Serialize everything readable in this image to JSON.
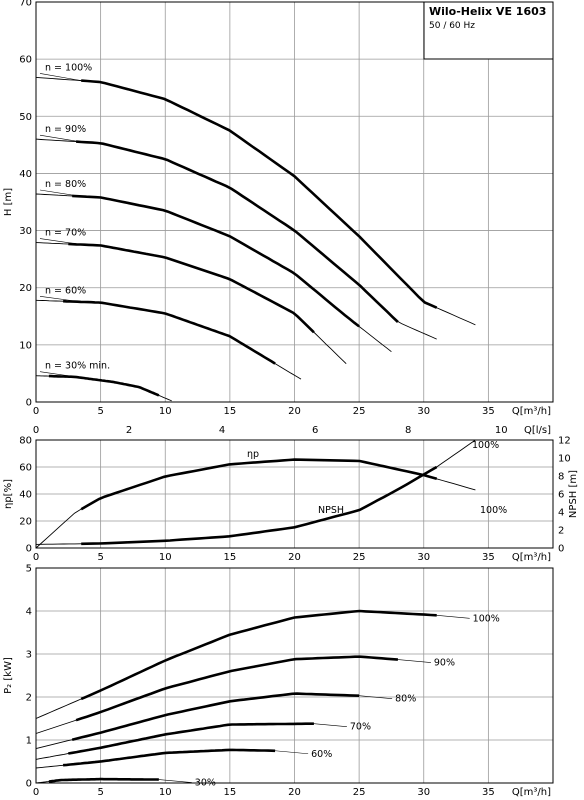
{
  "header": {
    "title": "Wilo-Helix VE 1603",
    "subtitle": "50 / 60 Hz"
  },
  "chart_data": [
    {
      "type": "line",
      "id": "head",
      "xlabel": "Q[m³/h]",
      "ylabel": "H [m]",
      "xlim": [
        0,
        40
      ],
      "ylim": [
        0,
        70
      ],
      "x_ticks": [
        0,
        5,
        10,
        15,
        20,
        25,
        30,
        35
      ],
      "y_ticks": [
        0,
        10,
        20,
        30,
        40,
        50,
        60,
        70
      ],
      "secondary_x": {
        "label": "Q[l/s]",
        "ticks": [
          0,
          2,
          4,
          6,
          8,
          10
        ]
      },
      "grid": true,
      "series": [
        {
          "name": "n = 100%",
          "x": [
            0,
            5,
            10,
            15,
            20,
            25,
            30,
            34
          ],
          "y": [
            56.8,
            56.0,
            53.0,
            47.5,
            39.5,
            29.0,
            17.5,
            13.5
          ],
          "bold": [
            3.5,
            31
          ]
        },
        {
          "name": "n = 90%",
          "x": [
            0,
            5,
            10,
            15,
            20,
            25,
            28,
            31
          ],
          "y": [
            46.0,
            45.3,
            42.5,
            37.5,
            30.0,
            20.5,
            14.0,
            11.0
          ],
          "bold": [
            3.1,
            28
          ]
        },
        {
          "name": "n = 80%",
          "x": [
            0,
            5,
            10,
            15,
            20,
            24,
            27.5
          ],
          "y": [
            36.4,
            35.8,
            33.5,
            29.0,
            22.5,
            15.0,
            8.8
          ],
          "bold": [
            2.8,
            25
          ]
        },
        {
          "name": "n = 70%",
          "x": [
            0,
            5,
            10,
            15,
            20,
            24
          ],
          "y": [
            27.9,
            27.4,
            25.3,
            21.5,
            15.5,
            6.7
          ],
          "bold": [
            2.5,
            21.5
          ]
        },
        {
          "name": "n = 60%",
          "x": [
            0,
            5,
            10,
            15,
            20.5
          ],
          "y": [
            17.8,
            17.4,
            15.5,
            11.5,
            4.0
          ],
          "bold": [
            2.1,
            18.5
          ]
        },
        {
          "name": "n = 30% min.",
          "x": [
            0,
            3,
            6,
            8,
            10.5
          ],
          "y": [
            4.6,
            4.4,
            3.5,
            2.6,
            0.2
          ],
          "bold": [
            1,
            9.5
          ]
        }
      ]
    },
    {
      "type": "line",
      "id": "efficiency-npsh",
      "xlabel": "Q[m³/h]",
      "ylabel": "ηp[%]",
      "y2label": "NPSH [m]",
      "xlim": [
        0,
        40
      ],
      "ylim": [
        0,
        80
      ],
      "y2lim": [
        0,
        12
      ],
      "x_ticks": [
        0,
        5,
        10,
        15,
        20,
        25,
        30,
        35
      ],
      "y_ticks": [
        0,
        20,
        40,
        60,
        80
      ],
      "y2_ticks": [
        0,
        2,
        4,
        6,
        8,
        10,
        12
      ],
      "grid": true,
      "series": [
        {
          "name": "ηp",
          "end_label": "100%",
          "axis": "left",
          "x": [
            0,
            3,
            5,
            10,
            15,
            20,
            25,
            30,
            34
          ],
          "y": [
            0,
            26,
            37,
            53,
            62,
            65.5,
            64.5,
            54,
            43
          ],
          "bold": [
            3.5,
            31
          ]
        },
        {
          "name": "NPSH",
          "end_label": "100%",
          "axis": "right",
          "x": [
            0,
            5,
            10,
            15,
            20,
            25,
            28,
            31,
            34
          ],
          "y": [
            0.4,
            0.5,
            0.8,
            1.3,
            2.3,
            4.2,
            6.5,
            9.0,
            12.0
          ],
          "bold": [
            3.5,
            31
          ]
        }
      ]
    },
    {
      "type": "line",
      "id": "power",
      "xlabel": "Q[m³/h]",
      "ylabel": "P₂ [kW]",
      "xlim": [
        0,
        40
      ],
      "ylim": [
        0,
        5
      ],
      "x_ticks": [
        0,
        5,
        10,
        15,
        20,
        25,
        30,
        35
      ],
      "y_ticks": [
        0,
        1,
        2,
        3,
        4,
        5
      ],
      "grid": true,
      "series": [
        {
          "name": "100%",
          "x": [
            0,
            5,
            10,
            15,
            20,
            25,
            31
          ],
          "y": [
            1.5,
            2.15,
            2.85,
            3.45,
            3.85,
            4.0,
            3.9
          ],
          "bold": [
            3.5,
            31
          ]
        },
        {
          "name": "90%",
          "x": [
            0,
            5,
            10,
            15,
            20,
            25,
            28
          ],
          "y": [
            1.15,
            1.65,
            2.2,
            2.6,
            2.88,
            2.94,
            2.87
          ],
          "bold": [
            3.1,
            28
          ]
        },
        {
          "name": "80%",
          "x": [
            0,
            5,
            10,
            15,
            20,
            25
          ],
          "y": [
            0.8,
            1.17,
            1.58,
            1.9,
            2.08,
            2.03
          ],
          "bold": [
            2.8,
            25
          ]
        },
        {
          "name": "70%",
          "x": [
            0,
            5,
            10,
            15,
            21.5
          ],
          "y": [
            0.55,
            0.82,
            1.13,
            1.36,
            1.38
          ],
          "bold": [
            2.5,
            21.5
          ]
        },
        {
          "name": "60%",
          "x": [
            0,
            5,
            10,
            15,
            18.5
          ],
          "y": [
            0.35,
            0.5,
            0.7,
            0.77,
            0.75
          ],
          "bold": [
            2.1,
            18.5
          ]
        },
        {
          "name": "30%",
          "x": [
            0,
            2,
            5,
            9.5
          ],
          "y": [
            0.0,
            0.07,
            0.09,
            0.08
          ],
          "bold": [
            1,
            9.5
          ]
        }
      ]
    }
  ]
}
